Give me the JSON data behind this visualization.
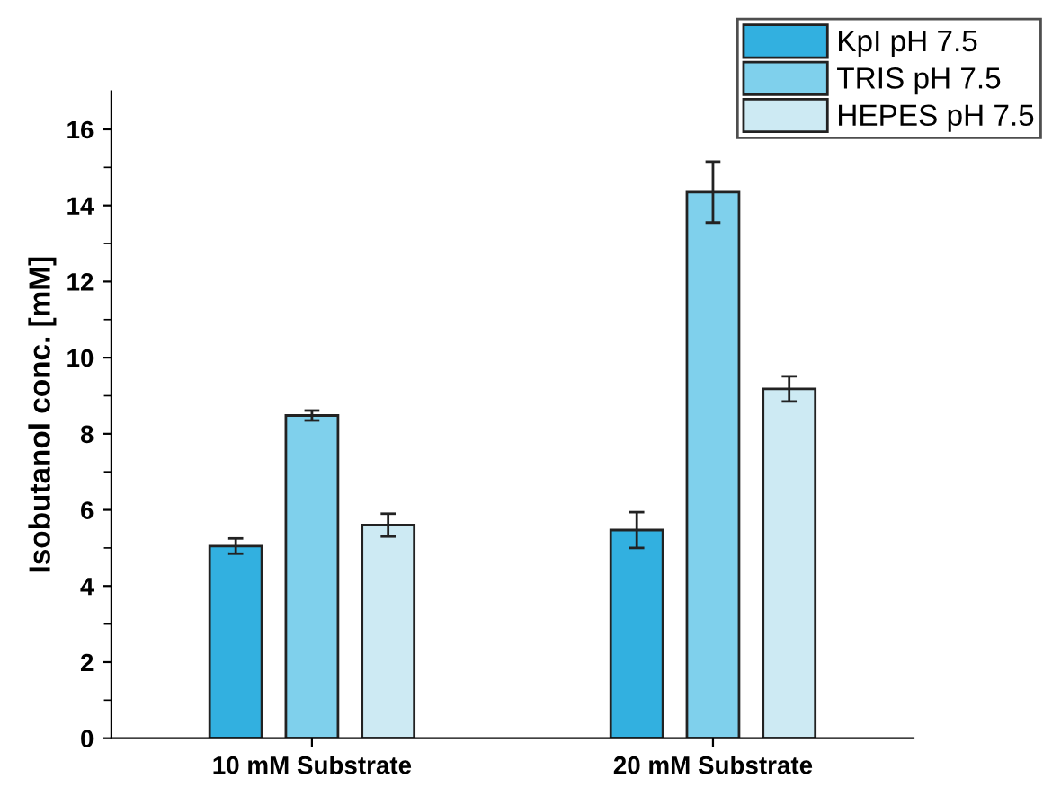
{
  "chart_data": {
    "type": "bar",
    "ylabel": "Isobutanol conc. [mM]",
    "categories": [
      "10 mM Substrate",
      "20 mM Substrate"
    ],
    "series": [
      {
        "name": "KpI pH 7.5",
        "color": "#32b0e0",
        "values": [
          5.05,
          5.47
        ],
        "errors": [
          0.2,
          0.47
        ]
      },
      {
        "name": "TRIS pH 7.5",
        "color": "#7fd0ec",
        "values": [
          8.48,
          14.35
        ],
        "errors": [
          0.13,
          0.8
        ]
      },
      {
        "name": "HEPES pH 7.5",
        "color": "#cdeaf3",
        "values": [
          5.6,
          9.18
        ],
        "errors": [
          0.3,
          0.33
        ]
      }
    ],
    "ylim": [
      0,
      17
    ],
    "yticks": [
      0,
      2,
      4,
      6,
      8,
      10,
      12,
      14,
      16
    ],
    "grid": false,
    "legend": "top right"
  }
}
